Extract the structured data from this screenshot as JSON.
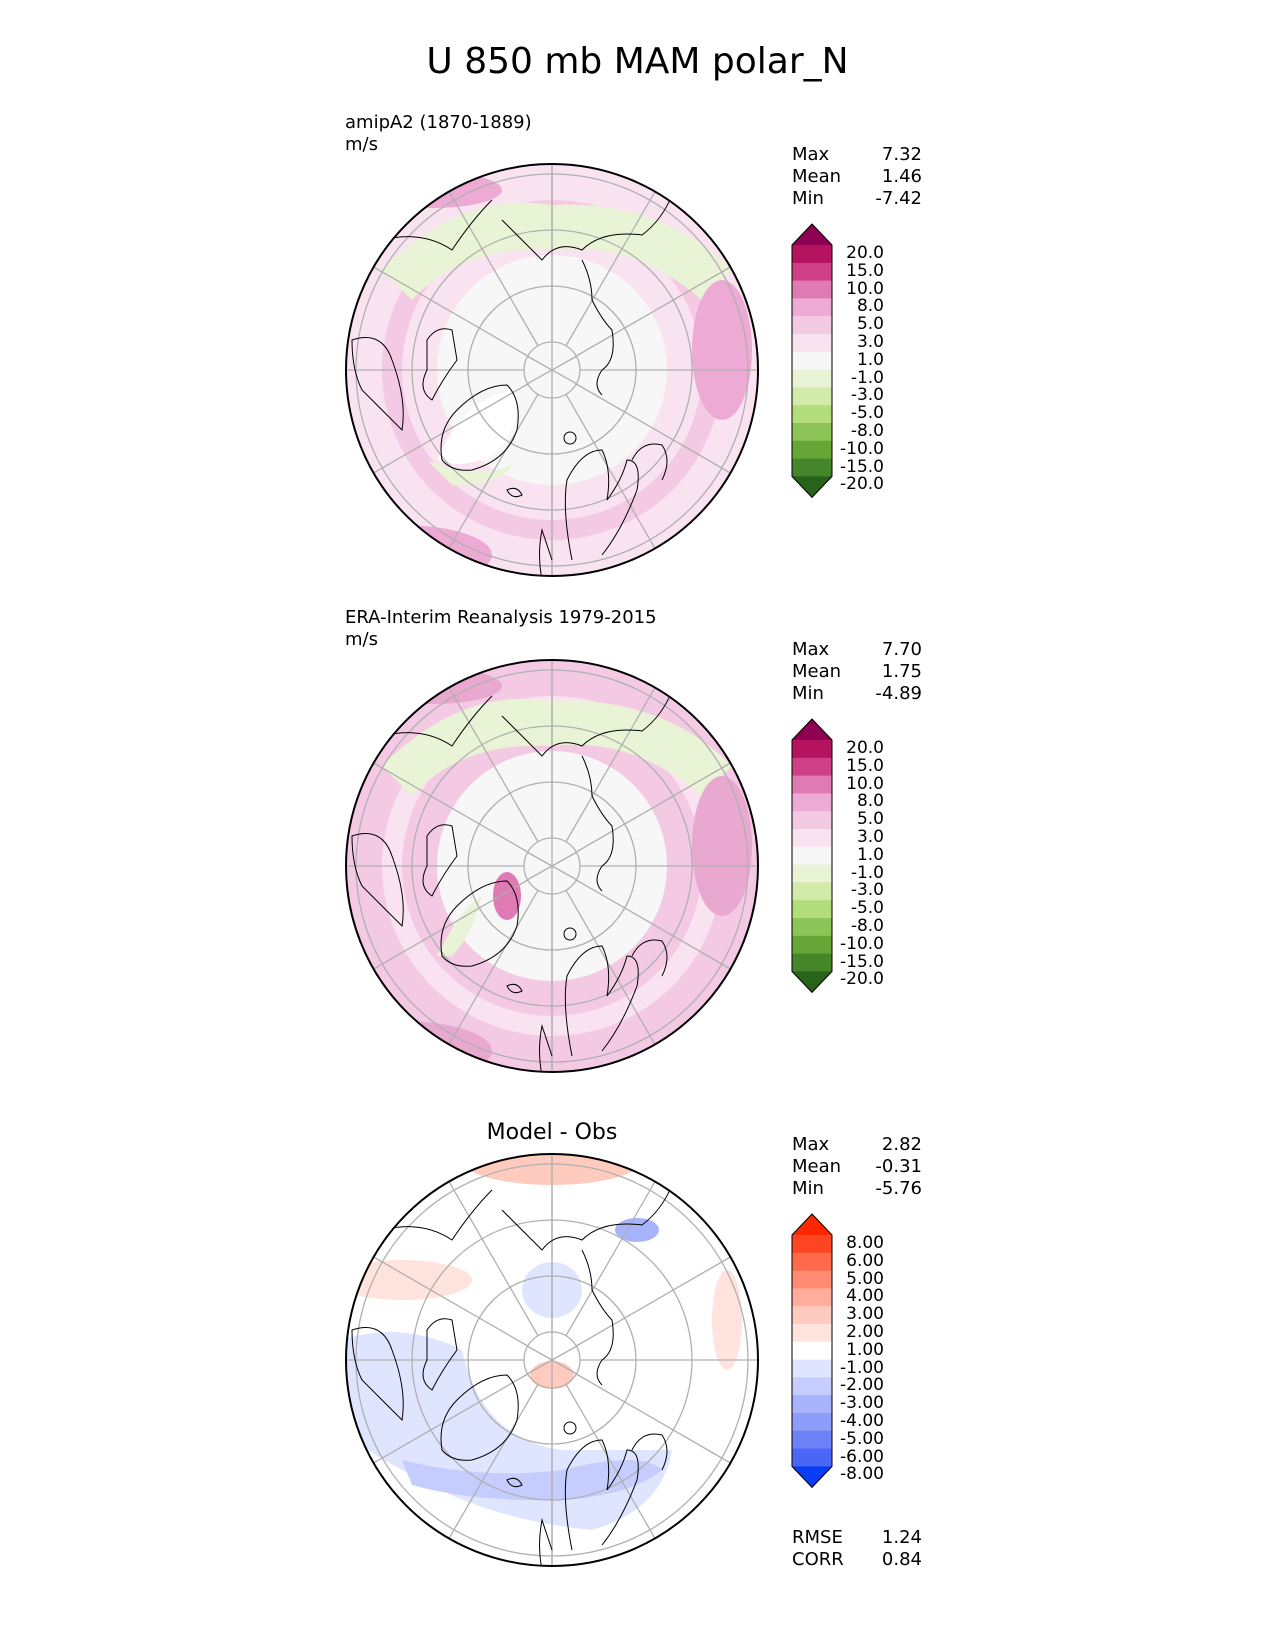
{
  "title": "U 850 mb MAM polar_N",
  "panels": [
    {
      "id": "model",
      "title_line1": "amipA2 (1870-1889)",
      "title_line2": "m/s",
      "stats": [
        {
          "label": "Max",
          "value": "7.32"
        },
        {
          "label": "Mean",
          "value": "1.46"
        },
        {
          "label": "Min",
          "value": "-7.42"
        }
      ],
      "colorbar": {
        "levels": [
          "20.0",
          "15.0",
          "10.0",
          "8.0",
          "5.0",
          "3.0",
          "1.0",
          "-1.0",
          "-3.0",
          "-5.0",
          "-8.0",
          "-10.0",
          "-15.0",
          "-20.0"
        ],
        "colors": [
          "#8e0152",
          "#b5125f",
          "#cf3f88",
          "#e07ab5",
          "#edaad4",
          "#f4c9e4",
          "#f9e3f0",
          "#f7f7f7",
          "#e9f4d6",
          "#d3ebaa",
          "#b3dd7b",
          "#8dc457",
          "#66a637",
          "#46862a",
          "#276419"
        ]
      },
      "map_fill": {
        "background": "#f9e3f0",
        "polar": "#f7f7f7",
        "accent_warm": "#f4c9e4",
        "accent_warm2": "#edaad4",
        "accent_cool": "#e9f4d6"
      }
    },
    {
      "id": "obs",
      "title_line1": "ERA-Interim Reanalysis 1979-2015",
      "title_line2": "m/s",
      "stats": [
        {
          "label": "Max",
          "value": "7.70"
        },
        {
          "label": "Mean",
          "value": "1.75"
        },
        {
          "label": "Min",
          "value": "-4.89"
        }
      ],
      "colorbar": {
        "levels": [
          "20.0",
          "15.0",
          "10.0",
          "8.0",
          "5.0",
          "3.0",
          "1.0",
          "-1.0",
          "-3.0",
          "-5.0",
          "-8.0",
          "-10.0",
          "-15.0",
          "-20.0"
        ],
        "colors": [
          "#8e0152",
          "#b5125f",
          "#cf3f88",
          "#e07ab5",
          "#edaad4",
          "#f4c9e4",
          "#f9e3f0",
          "#f7f7f7",
          "#e9f4d6",
          "#d3ebaa",
          "#b3dd7b",
          "#8dc457",
          "#66a637",
          "#46862a",
          "#276419"
        ]
      },
      "map_fill": {
        "background": "#f4c9e4",
        "polar": "#f7f7f7",
        "accent_warm": "#f9e3f0",
        "accent_warm2": "#e8a8d0",
        "accent_cool": "#e9f4d6"
      }
    },
    {
      "id": "diff",
      "title_line1": "Model - Obs",
      "stats": [
        {
          "label": "Max",
          "value": "2.82"
        },
        {
          "label": "Mean",
          "value": "-0.31"
        },
        {
          "label": "Min",
          "value": "-5.76"
        }
      ],
      "extra_stats": [
        {
          "label": "RMSE",
          "value": "1.24"
        },
        {
          "label": "CORR",
          "value": "0.84"
        }
      ],
      "colorbar": {
        "levels": [
          "8.00",
          "6.00",
          "5.00",
          "4.00",
          "3.00",
          "2.00",
          "1.00",
          "-1.00",
          "-2.00",
          "-3.00",
          "-4.00",
          "-5.00",
          "-6.00",
          "-8.00"
        ],
        "colors": [
          "#ff2600",
          "#ff4422",
          "#ff6a4a",
          "#ff8c72",
          "#ffad9a",
          "#ffcbbf",
          "#ffe4de",
          "#ffffff",
          "#dfe4ff",
          "#c4cdfd",
          "#a7b4fb",
          "#8c9cf9",
          "#6c82f8",
          "#4a66f7",
          "#0a3df6"
        ]
      },
      "map_fill": {
        "background": "#ffffff",
        "polar": "#ffffff",
        "accent_warm": "#ffcbbf",
        "accent_warm2": "#ffe4de",
        "accent_cool": "#c4cdfd"
      }
    }
  ]
}
